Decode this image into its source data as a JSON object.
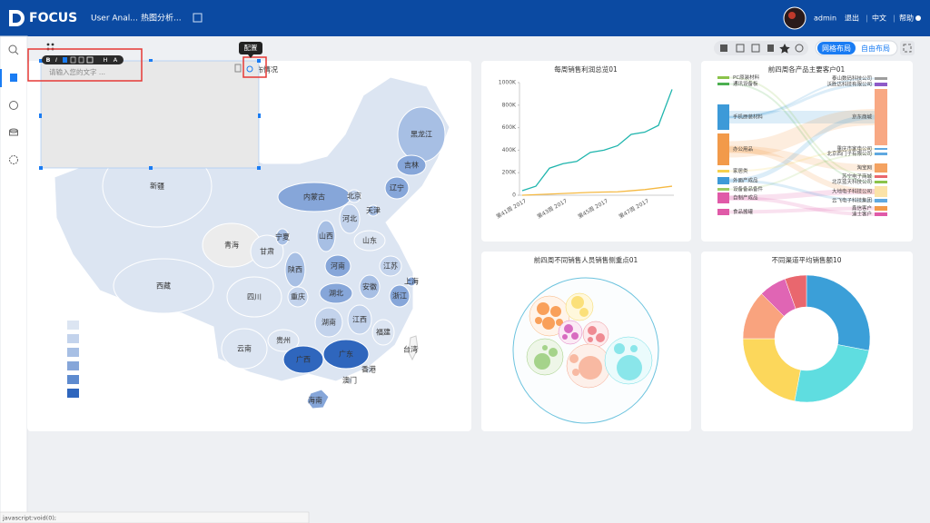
{
  "header": {
    "logo": "FOCUS",
    "tabs": [
      "User Anal...",
      "热图分析..."
    ],
    "user": "admin",
    "links": [
      "退出",
      "中文",
      "帮助"
    ]
  },
  "toolbar": {
    "layouts": [
      "网格布局",
      "自由布局"
    ]
  },
  "editor": {
    "buttons": [
      "B",
      "I",
      "H",
      "A"
    ],
    "placeholder": "请输入您的文字 ...",
    "tooltip": "配置"
  },
  "map": {
    "title": "布情况",
    "legend_colors": [
      "#dce5f2",
      "#c3d3ec",
      "#a7bfe4",
      "#86a6d9",
      "#5e8bcf",
      "#2f66bd"
    ],
    "provinces": [
      {
        "name": "新疆",
        "color": "#dce5f2"
      },
      {
        "name": "西藏",
        "color": "#dce5f2"
      },
      {
        "name": "青海",
        "color": "#ececec"
      },
      {
        "name": "甘肃",
        "color": "#dce5f2"
      },
      {
        "name": "宁夏",
        "color": "#a7bfe4"
      },
      {
        "name": "内蒙古",
        "color": "#86a6d9"
      },
      {
        "name": "黑龙江",
        "color": "#a7bfe4"
      },
      {
        "name": "吉林",
        "color": "#86a6d9"
      },
      {
        "name": "辽宁",
        "color": "#86a6d9"
      },
      {
        "name": "北京",
        "color": "#c3d3ec"
      },
      {
        "name": "天津",
        "color": "#a7bfe4"
      },
      {
        "name": "河北",
        "color": "#c3d3ec"
      },
      {
        "name": "山西",
        "color": "#a7bfe4"
      },
      {
        "name": "山东",
        "color": "#dce5f2"
      },
      {
        "name": "陕西",
        "color": "#a7bfe4"
      },
      {
        "name": "河南",
        "color": "#86a6d9"
      },
      {
        "name": "江苏",
        "color": "#c3d3ec"
      },
      {
        "name": "上海",
        "color": "#86a6d9"
      },
      {
        "name": "安徽",
        "color": "#a7bfe4"
      },
      {
        "name": "浙江",
        "color": "#86a6d9"
      },
      {
        "name": "湖北",
        "color": "#86a6d9"
      },
      {
        "name": "四川",
        "color": "#dce5f2"
      },
      {
        "name": "重庆",
        "color": "#c3d3ec"
      },
      {
        "name": "湖南",
        "color": "#c3d3ec"
      },
      {
        "name": "江西",
        "color": "#c3d3ec"
      },
      {
        "name": "福建",
        "color": "#dce5f2"
      },
      {
        "name": "贵州",
        "color": "#dce5f2"
      },
      {
        "name": "云南",
        "color": "#dce5f2"
      },
      {
        "name": "广西",
        "color": "#2f66bd"
      },
      {
        "name": "广东",
        "color": "#2f66bd"
      },
      {
        "name": "香港",
        "color": "#dce5f2"
      },
      {
        "name": "澳门",
        "color": "#dce5f2"
      },
      {
        "name": "海南",
        "color": "#86a6d9"
      },
      {
        "name": "台湾",
        "color": "#f4f4f4"
      }
    ]
  },
  "chart_data": [
    {
      "type": "line",
      "title": "每周销售利润总览01",
      "categories": [
        "第41周 2017",
        null,
        null,
        "第43周 2017",
        null,
        null,
        "第45周 2017",
        null,
        null,
        "第47周 2017",
        null,
        null
      ],
      "series": [
        {
          "color": "#1fb5ad",
          "values": [
            40000,
            80000,
            240000,
            280000,
            300000,
            380000,
            400000,
            440000,
            540000,
            560000,
            620000,
            940000
          ]
        },
        {
          "color": "#f5b942",
          "values": [
            0,
            5000,
            10000,
            15000,
            20000,
            25000,
            28000,
            30000,
            40000,
            50000,
            65000,
            80000
          ]
        }
      ],
      "ylim": [
        0,
        1000000
      ],
      "yticks": [
        0,
        {
          "value": 200000,
          "label": "200K"
        },
        {
          "value": 400000,
          "label": "400K"
        },
        {
          "value": 600000,
          "label": "600K"
        },
        {
          "value": 800000,
          "label": "800K"
        },
        {
          "value": 1000000,
          "label": "1000K"
        }
      ]
    },
    {
      "type": "pie",
      "title": "不同渠道平均销售额10",
      "donut": true,
      "values": [
        28,
        25,
        22,
        12.5,
        7,
        5.5
      ],
      "colors": [
        "#3b9fd8",
        "#5fdde0",
        "#fcd75b",
        "#f9a37e",
        "#e065b4",
        "#e9676e"
      ]
    }
  ],
  "sankey": {
    "title": "前四周各产品主要客户01",
    "sources": [
      {
        "name": "PC原装材料",
        "color": "#8bc34a"
      },
      {
        "name": "通讯设备板",
        "color": "#4caf50"
      },
      {
        "name": "手机原装材料",
        "color": "#3d9ad8"
      },
      {
        "name": "办公用品",
        "color": "#f29a4a"
      },
      {
        "name": "家居类",
        "color": "#f6d04d"
      },
      {
        "name": "外面产成品",
        "color": "#3d9ad8"
      },
      {
        "name": "设备备品备件",
        "color": "#9ccc65"
      },
      {
        "name": "自制产成品",
        "color": "#e05aa8"
      },
      {
        "name": "食品酱罐",
        "color": "#e05aa8"
      }
    ],
    "targets": [
      {
        "name": "泰山数码科技公司",
        "color": "#9e9e9e"
      },
      {
        "name": "沃胜达科技有限公司",
        "color": "#8e5ac8"
      },
      {
        "name": "京东商城",
        "color": "#f8a883"
      },
      {
        "name": "重庆市家电公司",
        "color": "#5fa8e0"
      },
      {
        "name": "北京西门子有限公司",
        "color": "#5fa8e0"
      },
      {
        "name": "淘宝网",
        "color": "#f4a261"
      },
      {
        "name": "苏宁电子商城",
        "color": "#e9676e"
      },
      {
        "name": "北京蓝天科技公司",
        "color": "#8bc34a"
      },
      {
        "name": "大地电子科技公司",
        "color": "#fbe3a8"
      },
      {
        "name": "云飞电子科技集团",
        "color": "#5fa8e0"
      },
      {
        "name": "鑫信客户",
        "color": "#f29a4a"
      },
      {
        "name": "迪士客户",
        "color": "#e05aa8"
      }
    ]
  },
  "bubble": {
    "title": "前四周不同销售人员销售侧重点01"
  },
  "status_bar": "javascript:void(0);"
}
